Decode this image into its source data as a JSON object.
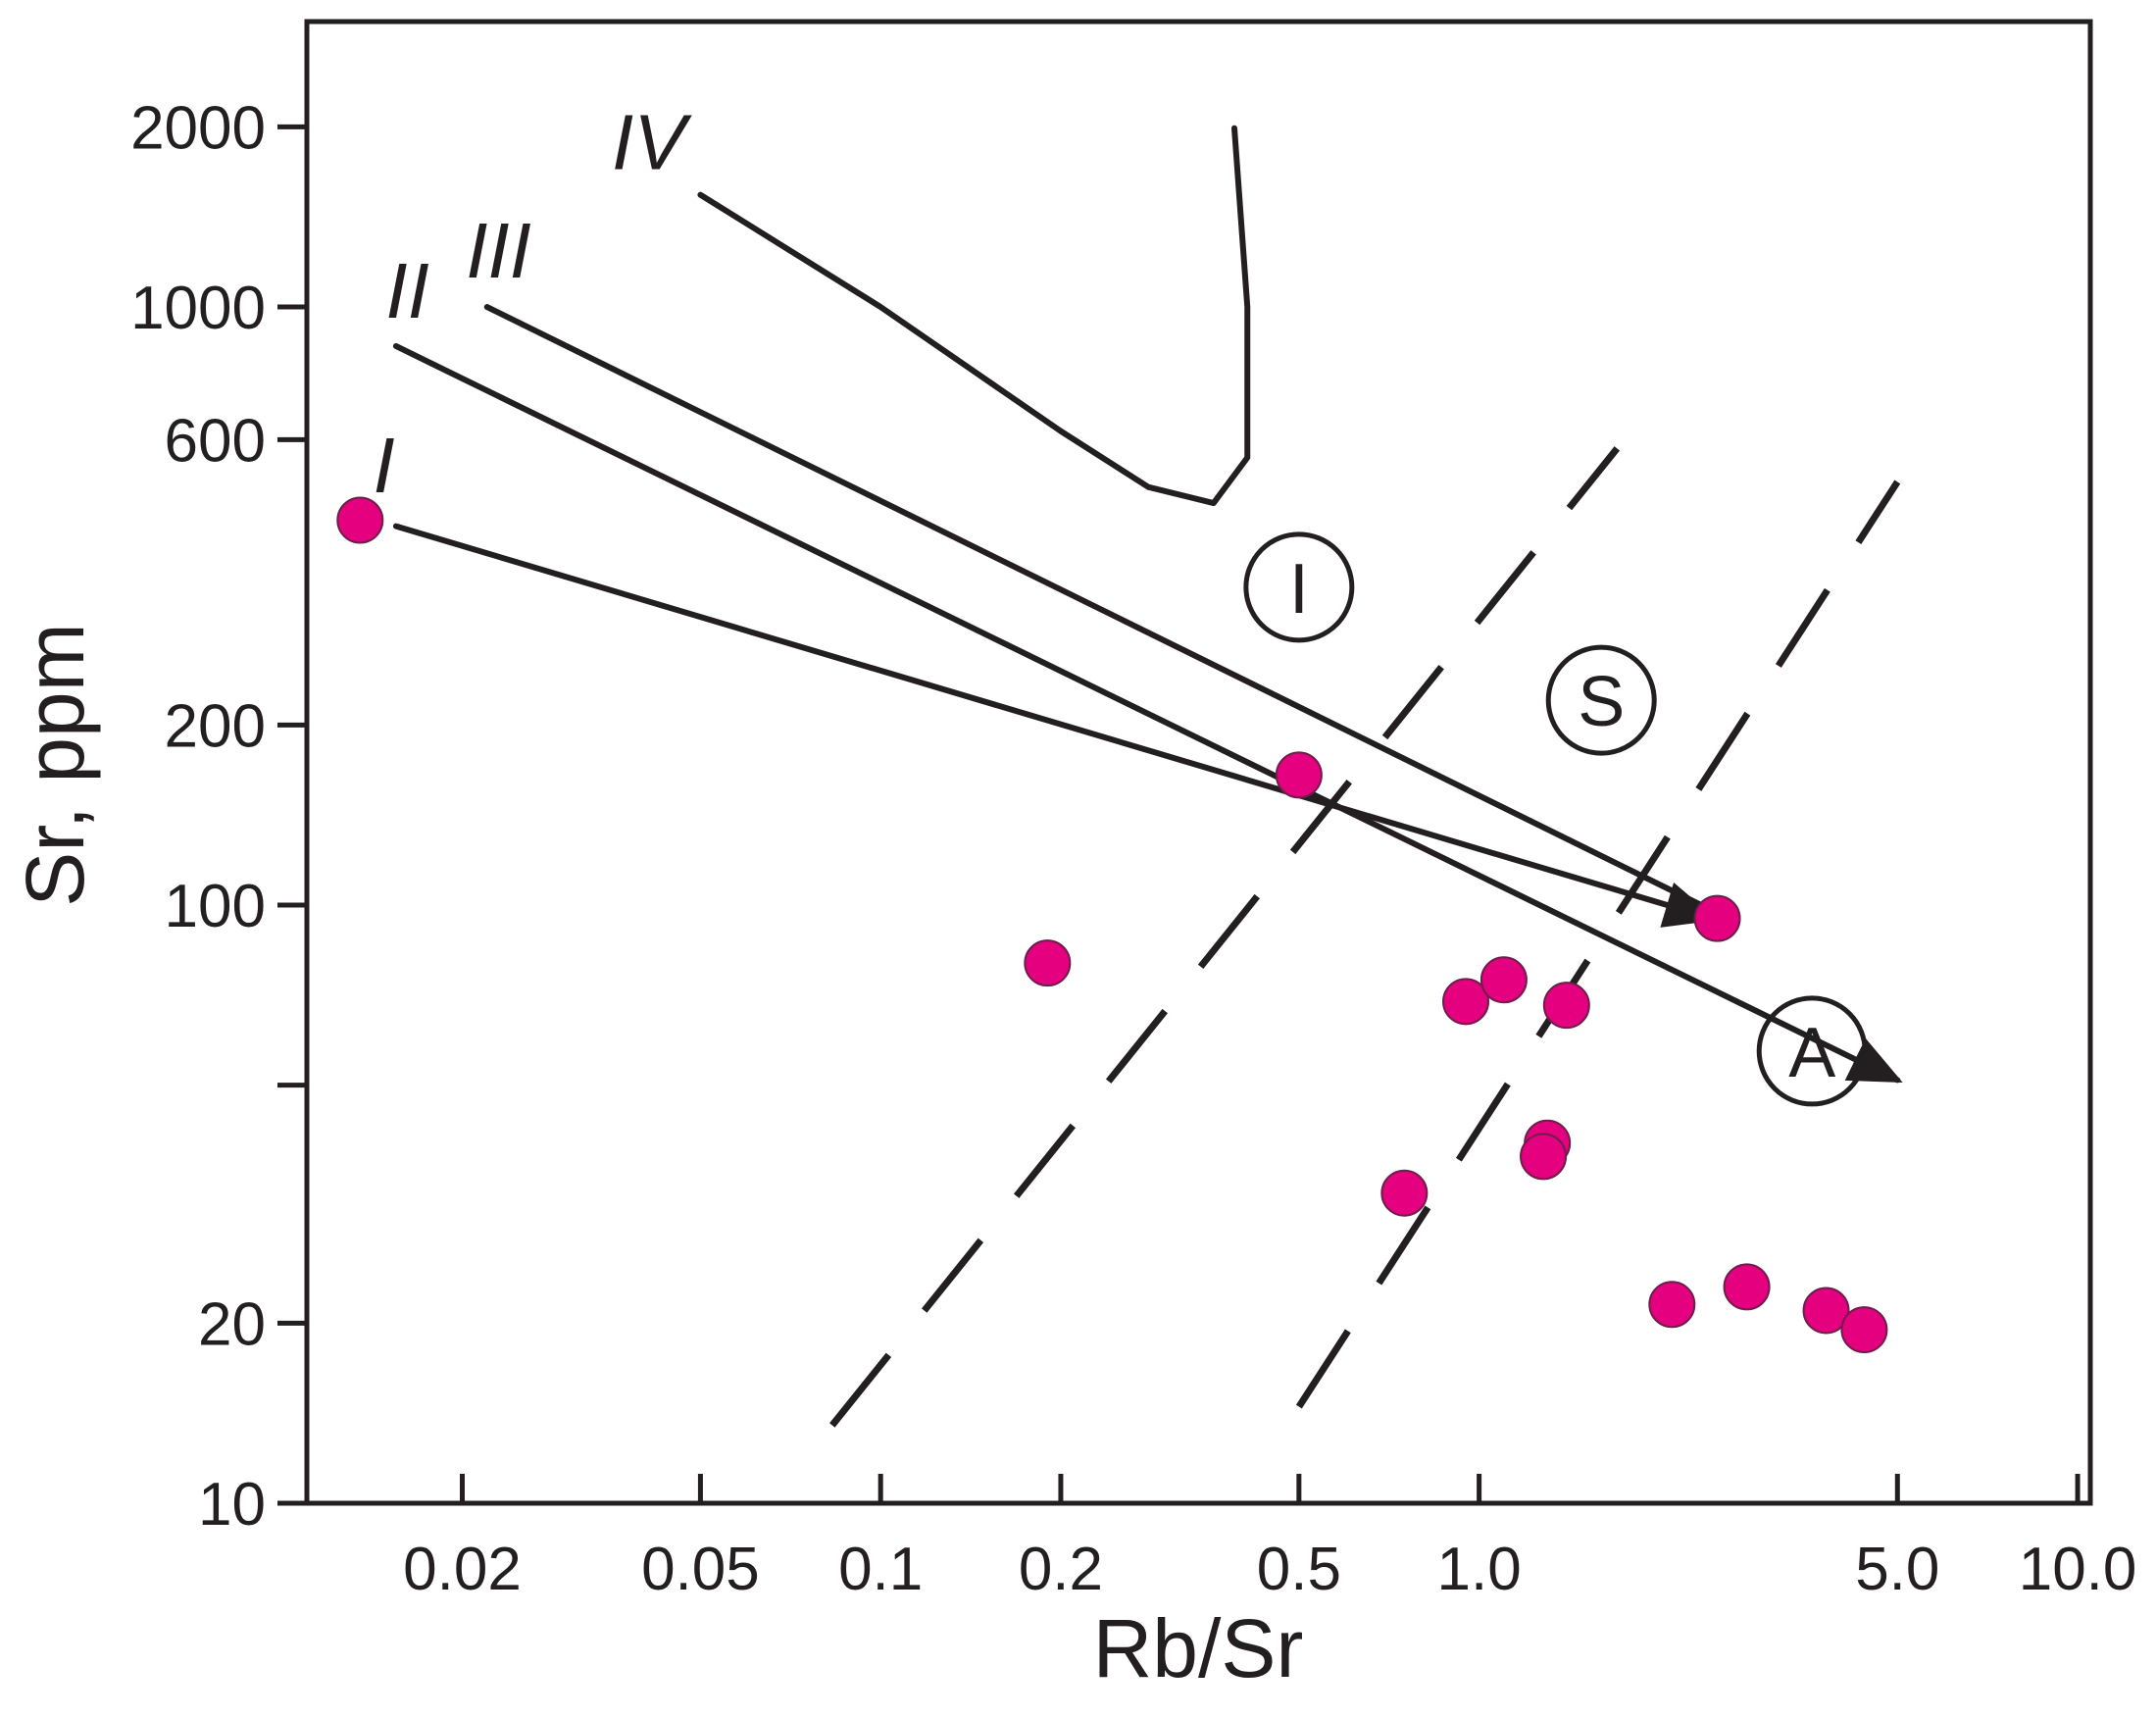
{
  "chart_data": {
    "type": "scatter",
    "title": "",
    "xlabel": "Rb/Sr",
    "ylabel": "Sr, ppm",
    "xscale": "log",
    "yscale": "log",
    "xlim": [
      0.011,
      10.5
    ],
    "ylim": [
      10,
      3000
    ],
    "x_ticks": [
      {
        "value": 0.02,
        "label": "0.02"
      },
      {
        "value": 0.05,
        "label": "0.05"
      },
      {
        "value": 0.1,
        "label": "0.1"
      },
      {
        "value": 0.2,
        "label": "0.2"
      },
      {
        "value": 0.5,
        "label": "0.5"
      },
      {
        "value": 1.0,
        "label": "1.0"
      },
      {
        "value": 5.0,
        "label": "5.0"
      },
      {
        "value": 10.0,
        "label": "10.0"
      }
    ],
    "y_ticks": [
      {
        "value": 10,
        "label": "10"
      },
      {
        "value": 20,
        "label": "20"
      },
      {
        "value": 50,
        "label": ""
      },
      {
        "value": 100,
        "label": "100"
      },
      {
        "value": 200,
        "label": "200"
      },
      {
        "value": 600,
        "label": "600"
      },
      {
        "value": 1000,
        "label": "1000"
      },
      {
        "value": 2000,
        "label": "2000"
      }
    ],
    "curves": [
      {
        "name": "I",
        "label": "I",
        "points": [
          [
            0.0155,
            430
          ],
          [
            2.45,
            95
          ]
        ],
        "arrow": true,
        "label_at": [
          0.0148,
          490
        ]
      },
      {
        "name": "II",
        "label": "II",
        "points": [
          [
            0.0155,
            860
          ],
          [
            5.0,
            51
          ]
        ],
        "arrow": true,
        "label_at": [
          0.0162,
          960
        ]
      },
      {
        "name": "III",
        "label": "III",
        "points": [
          [
            0.022,
            1000
          ],
          [
            2.5,
            97
          ]
        ],
        "arrow": false,
        "label_at": [
          0.023,
          1120
        ]
      },
      {
        "name": "IV",
        "label": "IV",
        "points": [
          [
            0.05,
            1540
          ],
          [
            0.1,
            1000
          ],
          [
            0.2,
            620
          ],
          [
            0.28,
            500
          ],
          [
            0.36,
            470
          ],
          [
            0.41,
            560
          ],
          [
            0.41,
            1000
          ],
          [
            0.39,
            1990
          ]
        ],
        "arrow": false,
        "label_at": [
          0.041,
          1700
        ]
      }
    ],
    "boundaries": [
      {
        "name": "I-S boundary",
        "points": [
          [
            0.083,
            13.5
          ],
          [
            1.7,
            580
          ]
        ],
        "style": "dashed"
      },
      {
        "name": "S-A boundary",
        "points": [
          [
            0.5,
            14.5
          ],
          [
            5.0,
            510
          ]
        ],
        "style": "dashed"
      }
    ],
    "fields": [
      {
        "label": "I",
        "at": [
          0.5,
          340
        ]
      },
      {
        "label": "S",
        "at": [
          1.6,
          220
        ]
      },
      {
        "label": "A",
        "at": [
          3.6,
          57
        ]
      }
    ],
    "series": [
      {
        "name": "samples",
        "color": "#e4007f",
        "points": [
          [
            0.0135,
            440
          ],
          [
            0.19,
            80
          ],
          [
            0.5,
            165
          ],
          [
            0.95,
            69
          ],
          [
            1.1,
            75
          ],
          [
            1.4,
            68
          ],
          [
            1.3,
            40
          ],
          [
            1.28,
            38
          ],
          [
            0.75,
            33
          ],
          [
            2.5,
            95
          ],
          [
            2.1,
            21.5
          ],
          [
            2.8,
            23
          ],
          [
            3.8,
            21
          ],
          [
            4.4,
            19.5
          ]
        ]
      }
    ]
  }
}
